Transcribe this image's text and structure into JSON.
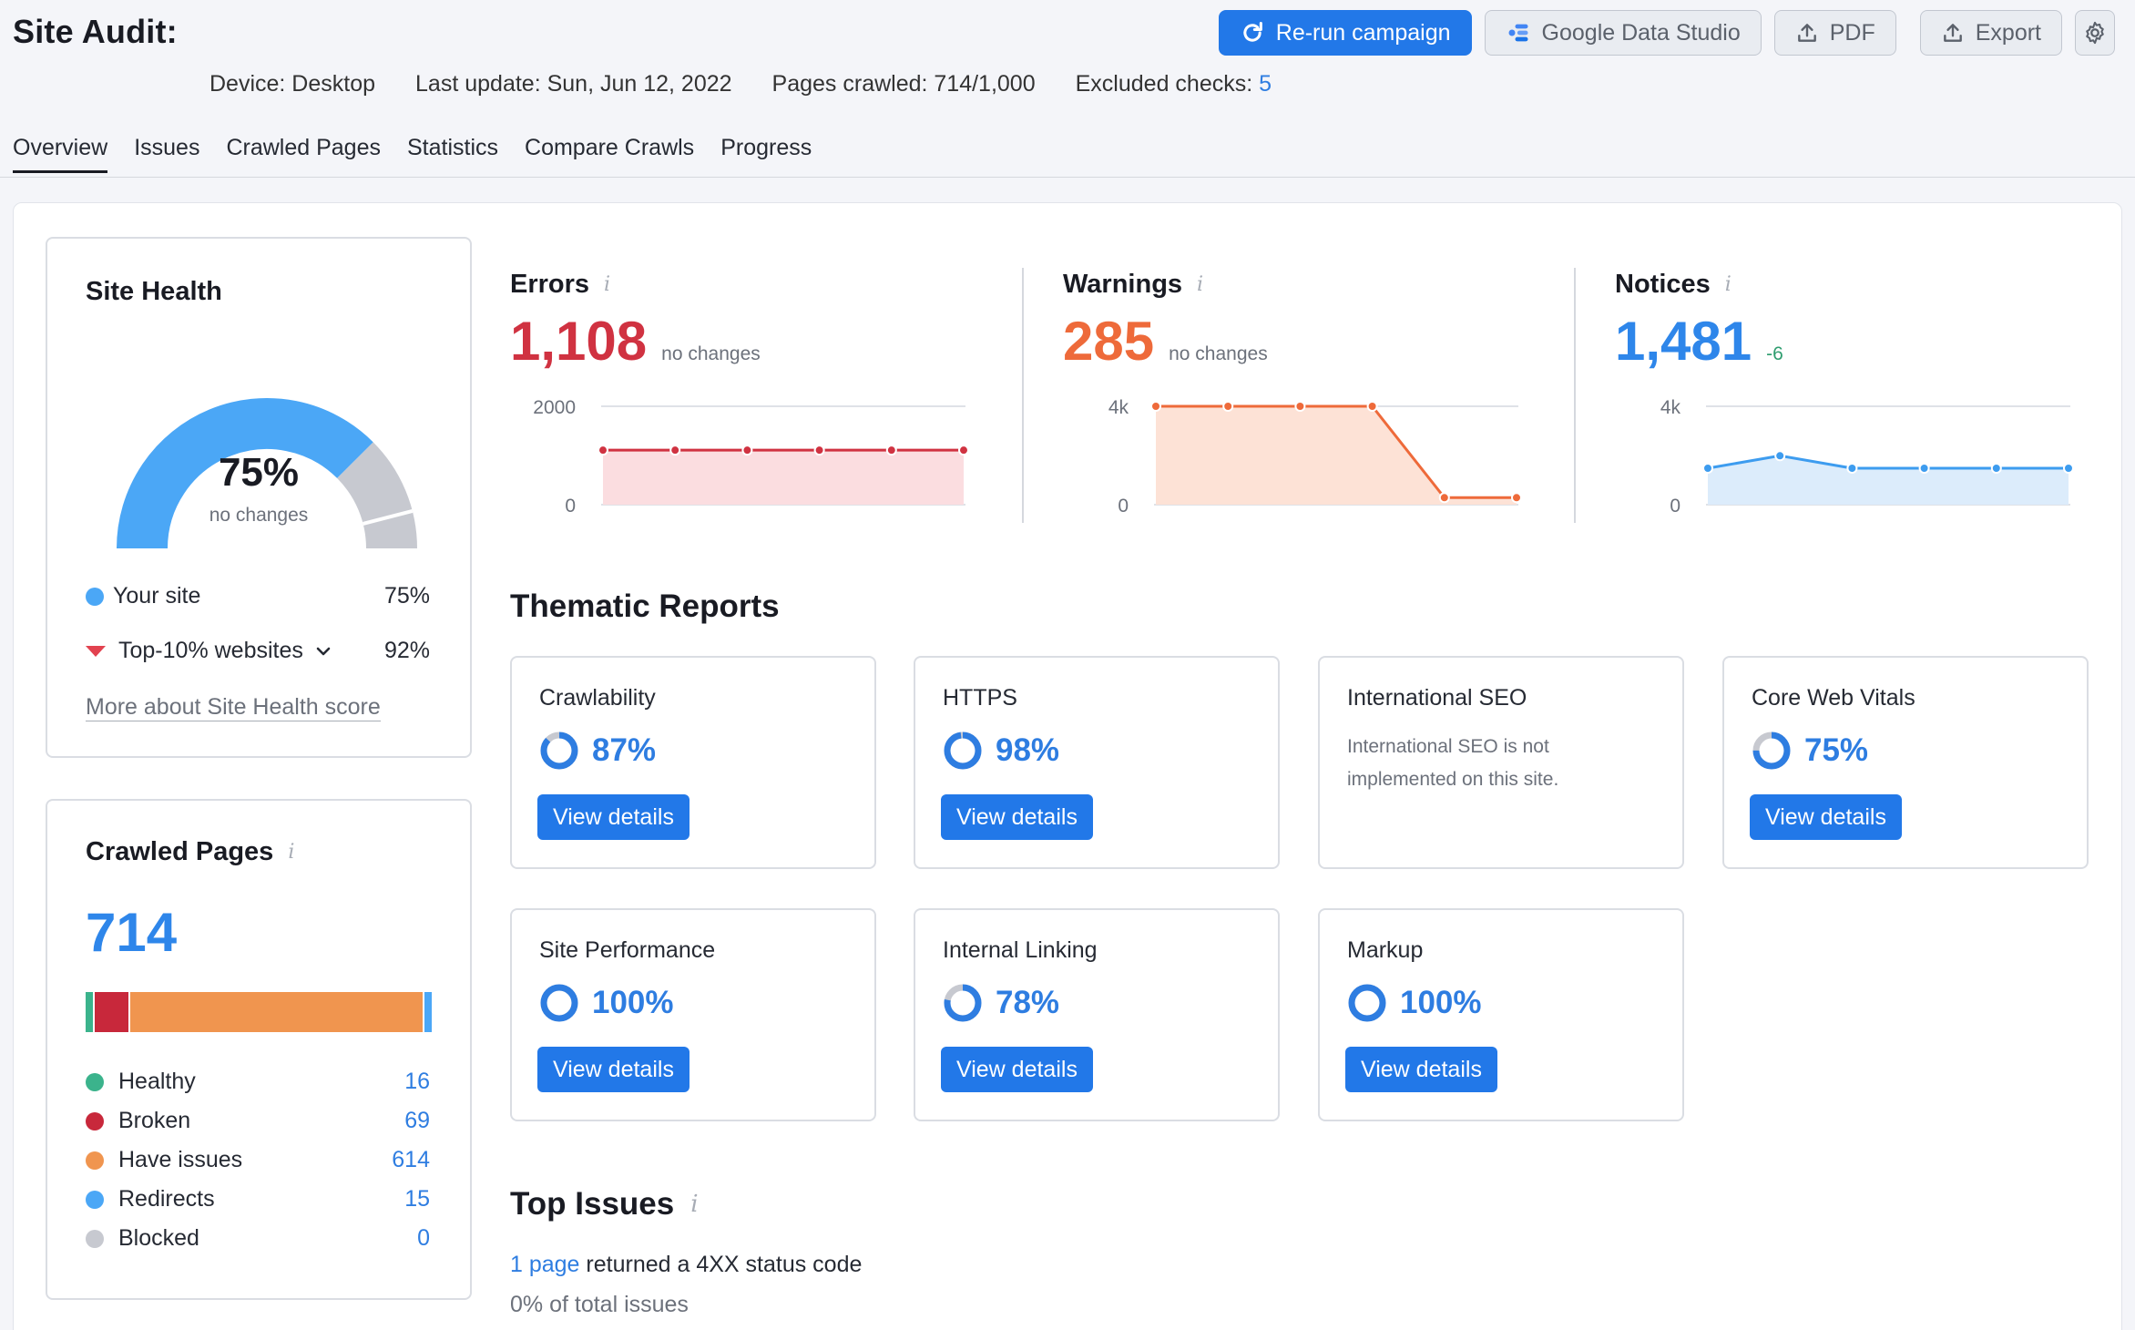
{
  "header": {
    "title": "Site Audit:",
    "meta": {
      "device": "Device: Desktop",
      "last_update": "Last update: Sun, Jun 12, 2022",
      "pages_crawled": "Pages crawled: 714/1,000",
      "excluded_label": "Excluded checks:",
      "excluded_value": "5"
    },
    "buttons": {
      "rerun": "Re-run campaign",
      "gds": "Google Data Studio",
      "pdf": "PDF",
      "export": "Export"
    }
  },
  "tabs": [
    "Overview",
    "Issues",
    "Crawled Pages",
    "Statistics",
    "Compare Crawls",
    "Progress"
  ],
  "site_health": {
    "title": "Site Health",
    "score": "75%",
    "change": "no changes",
    "score_value": 0.75,
    "top10_value": 0.92,
    "your_site_label": "Your site",
    "your_site_value": "75%",
    "top10_label": "Top-10% websites",
    "top10_value_text": "92%",
    "more_link": "More about Site Health score",
    "colors": {
      "your_site": "#4ba7f6",
      "remainder": "#c7c9d0",
      "top10_marker": "#e2424f"
    }
  },
  "crawled_pages": {
    "title": "Crawled Pages",
    "total": "714",
    "items": [
      {
        "label": "Healthy",
        "value": "16",
        "count": 16,
        "color": "#3bb38c"
      },
      {
        "label": "Broken",
        "value": "69",
        "count": 69,
        "color": "#c8283b"
      },
      {
        "label": "Have issues",
        "value": "614",
        "count": 614,
        "color": "#f0954f"
      },
      {
        "label": "Redirects",
        "value": "15",
        "count": 15,
        "color": "#4ba7f6"
      },
      {
        "label": "Blocked",
        "value": "0",
        "count": 0,
        "color": "#c7c9d0"
      }
    ]
  },
  "metrics": {
    "errors": {
      "label": "Errors",
      "value": "1,108",
      "change": "no changes",
      "color": "#d03241",
      "fill": "#fbdde0",
      "ticks": [
        "2000",
        "0"
      ],
      "ymax": 2000,
      "points": [
        1108,
        1108,
        1108,
        1108,
        1108,
        1108
      ]
    },
    "warnings": {
      "label": "Warnings",
      "value": "285",
      "change": "no changes",
      "color": "#ee6a3a",
      "fill": "#fde2d6",
      "ticks": [
        "4k",
        "0"
      ],
      "ymax": 4000,
      "points": [
        4000,
        4000,
        4000,
        4000,
        285,
        285
      ]
    },
    "notices": {
      "label": "Notices",
      "value": "1,481",
      "change": "-6",
      "color": "#3d9cef",
      "fill": "#dcecfb",
      "ticks": [
        "4k",
        "0"
      ],
      "ymax": 4000,
      "points": [
        1481,
        1990,
        1481,
        1481,
        1481,
        1481
      ]
    }
  },
  "thematic": {
    "title": "Thematic Reports",
    "view_details": "View details",
    "tiles": [
      {
        "name": "Crawlability",
        "score": "87%",
        "value": 0.87
      },
      {
        "name": "HTTPS",
        "score": "98%",
        "value": 0.98
      },
      {
        "name": "International SEO",
        "note": "International SEO is not implemented on this site."
      },
      {
        "name": "Core Web Vitals",
        "score": "75%",
        "value": 0.75
      },
      {
        "name": "Site Performance",
        "score": "100%",
        "value": 1.0
      },
      {
        "name": "Internal Linking",
        "score": "78%",
        "value": 0.78
      },
      {
        "name": "Markup",
        "score": "100%",
        "value": 1.0
      }
    ]
  },
  "top_issues": {
    "title": "Top Issues",
    "first_link": "1 page",
    "first_text": " returned a 4XX status code",
    "first_sub": "0% of total issues"
  }
}
